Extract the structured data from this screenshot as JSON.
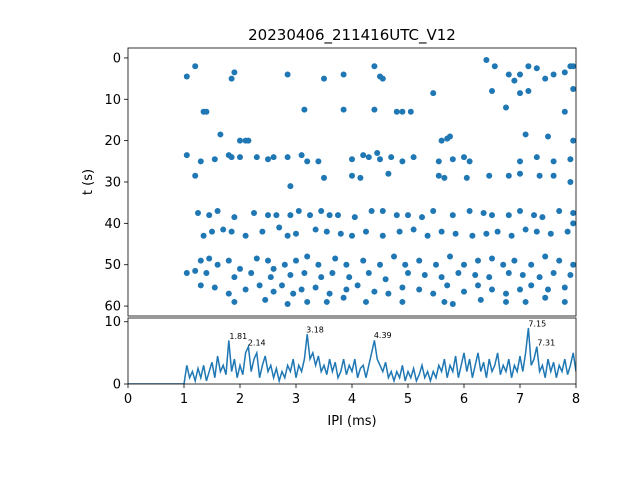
{
  "chart_data": [
    {
      "type": "scatter",
      "title": "20230406_211416UTC_V12",
      "ylabel": "t (s)",
      "color": "#1f77b4",
      "xlim": [
        0,
        8
      ],
      "ylim": [
        -2.4,
        62.4
      ],
      "y_inverted": true,
      "yticks": [
        0,
        10,
        20,
        30,
        40,
        50,
        60
      ],
      "x": [
        1.05,
        1.2,
        1.85,
        1.9,
        2.85,
        3.5,
        3.85,
        4.4,
        4.5,
        4.55,
        6.4,
        6.55,
        6.8,
        6.9,
        7.0,
        7.15,
        7.3,
        7.45,
        7.6,
        7.8,
        7.9,
        7.95,
        7.15,
        6.5,
        7.0,
        7.95,
        5.45,
        1.35,
        1.4,
        3.15,
        3.85,
        4.4,
        4.8,
        4.9,
        5.05,
        6.75,
        7.8,
        1.65,
        2.0,
        2.1,
        2.15,
        5.6,
        5.7,
        5.75,
        7.1,
        7.5,
        7.95,
        1.05,
        1.3,
        1.55,
        1.8,
        1.85,
        2.0,
        2.3,
        2.5,
        2.6,
        2.85,
        3.1,
        3.2,
        3.4,
        4.0,
        4.2,
        4.3,
        4.45,
        4.5,
        4.7,
        4.9,
        5.1,
        5.55,
        5.8,
        6.0,
        6.1,
        7.0,
        7.3,
        7.6,
        7.9,
        1.2,
        2.9,
        3.5,
        4.0,
        4.15,
        4.65,
        5.55,
        5.65,
        6.05,
        6.45,
        6.8,
        7.0,
        7.35,
        7.6,
        7.9,
        1.25,
        1.45,
        1.6,
        1.9,
        2.25,
        2.5,
        2.65,
        2.9,
        3.05,
        3.25,
        3.45,
        3.6,
        3.75,
        4.05,
        4.35,
        4.55,
        4.8,
        5.0,
        5.25,
        5.45,
        5.8,
        6.1,
        6.35,
        6.5,
        6.8,
        7.0,
        7.25,
        7.4,
        7.7,
        7.95,
        1.35,
        1.5,
        1.7,
        1.85,
        2.1,
        2.4,
        2.7,
        2.85,
        3.0,
        3.35,
        3.55,
        3.8,
        4.0,
        4.25,
        4.55,
        4.85,
        5.1,
        5.35,
        5.6,
        5.85,
        6.15,
        6.4,
        6.6,
        6.85,
        7.1,
        7.3,
        7.55,
        7.85,
        7.95,
        1.3,
        1.45,
        1.6,
        1.8,
        2.0,
        2.3,
        2.5,
        2.6,
        2.8,
        3.0,
        3.2,
        3.4,
        3.7,
        3.9,
        4.2,
        4.5,
        4.75,
        4.95,
        5.2,
        5.5,
        5.75,
        6.0,
        6.25,
        6.5,
        6.7,
        6.9,
        7.2,
        7.45,
        7.7,
        7.95,
        1.05,
        1.2,
        1.4,
        1.9,
        2.2,
        2.55,
        2.9,
        3.15,
        3.45,
        3.65,
        3.95,
        4.3,
        4.6,
        5.0,
        5.3,
        5.6,
        5.9,
        6.2,
        6.45,
        6.8,
        7.05,
        7.35,
        7.6,
        7.9,
        1.3,
        1.55,
        1.8,
        2.1,
        2.35,
        2.6,
        2.75,
        2.95,
        3.1,
        3.35,
        3.6,
        3.9,
        4.1,
        4.4,
        4.65,
        4.9,
        5.2,
        5.45,
        5.7,
        6.0,
        6.25,
        6.5,
        6.75,
        7.0,
        7.2,
        7.5,
        7.8,
        1.9,
        2.45,
        2.85,
        3.2,
        3.55,
        3.85,
        4.25,
        4.9,
        5.65,
        5.8,
        6.3,
        6.75,
        7.1,
        7.45,
        7.8
      ],
      "values": [
        4.5,
        2,
        5,
        3.5,
        4,
        5,
        4,
        2,
        4.5,
        5,
        0.5,
        2,
        4,
        5.5,
        4,
        2,
        2.5,
        5,
        4,
        3.5,
        2,
        2,
        8,
        8,
        8.5,
        7.5,
        8.5,
        13,
        13,
        12.5,
        12.5,
        12.5,
        13,
        13,
        13,
        12,
        13,
        18.5,
        20,
        20,
        20,
        20,
        19.5,
        19,
        18.5,
        19,
        20,
        23.5,
        25,
        24.5,
        23.5,
        24,
        24,
        24,
        24.5,
        24,
        24,
        23.5,
        25,
        25,
        24.5,
        23.5,
        24,
        23,
        24.5,
        24,
        25,
        24,
        25,
        24.5,
        24,
        25,
        25,
        24,
        25,
        24.5,
        28.5,
        31,
        29,
        28.5,
        29,
        28,
        28.5,
        29,
        29,
        28.5,
        28.5,
        28,
        28.5,
        28.5,
        30,
        37.5,
        38,
        37,
        38.5,
        37.5,
        38,
        38,
        38,
        37,
        38,
        37,
        38,
        38,
        38.5,
        37,
        37,
        38,
        38,
        38.5,
        37,
        38,
        37,
        37.5,
        38,
        38,
        37,
        38,
        38.5,
        37,
        37.5,
        43,
        42,
        41.5,
        42,
        43,
        42,
        41,
        43,
        42.5,
        41.5,
        42,
        42.5,
        43,
        42,
        43,
        42,
        41.5,
        43,
        42,
        42.5,
        43,
        42.5,
        42,
        43,
        41.5,
        42,
        42.5,
        42,
        40,
        49,
        48.5,
        50,
        49,
        51,
        48.5,
        49,
        51,
        50,
        49,
        48,
        50,
        48.5,
        50,
        49,
        50,
        48,
        50,
        49,
        50,
        48,
        50,
        49,
        48.5,
        50,
        49,
        50,
        48,
        49,
        50,
        52,
        51.5,
        52,
        53,
        52,
        53,
        52.5,
        52,
        53,
        52,
        53,
        52,
        53.5,
        52,
        52.5,
        53,
        52,
        52.5,
        53,
        52,
        52.5,
        53,
        52,
        52.5,
        55,
        55.5,
        57,
        56,
        55,
        56.5,
        55,
        57,
        56,
        55.5,
        57,
        56,
        55,
        56.5,
        57,
        55.5,
        56,
        57,
        55,
        56.5,
        55,
        56,
        57,
        56,
        55,
        56,
        55.5,
        59,
        58.5,
        59.5,
        59,
        59,
        58,
        59,
        59,
        59,
        59.5,
        58.5,
        59,
        59,
        58,
        59
      ]
    },
    {
      "type": "line",
      "xlabel": "IPI (ms)",
      "color": "#1f77b4",
      "xlim": [
        0,
        8
      ],
      "xticks": [
        0,
        1,
        2,
        3,
        4,
        5,
        6,
        7,
        8
      ],
      "ylim": [
        0,
        10.6
      ],
      "yticks": [
        0,
        10
      ],
      "x": [
        0,
        1.0,
        1.05,
        1.1,
        1.15,
        1.2,
        1.25,
        1.3,
        1.35,
        1.4,
        1.45,
        1.5,
        1.55,
        1.6,
        1.65,
        1.7,
        1.75,
        1.8,
        1.85,
        1.9,
        1.95,
        2.0,
        2.05,
        2.1,
        2.15,
        2.2,
        2.25,
        2.3,
        2.35,
        2.4,
        2.45,
        2.5,
        2.55,
        2.6,
        2.65,
        2.7,
        2.75,
        2.8,
        2.85,
        2.9,
        2.95,
        3.0,
        3.05,
        3.1,
        3.15,
        3.2,
        3.25,
        3.3,
        3.35,
        3.4,
        3.45,
        3.5,
        3.55,
        3.6,
        3.65,
        3.7,
        3.75,
        3.8,
        3.85,
        3.9,
        3.95,
        4.0,
        4.05,
        4.1,
        4.15,
        4.2,
        4.25,
        4.3,
        4.35,
        4.4,
        4.45,
        4.5,
        4.55,
        4.6,
        4.65,
        4.7,
        4.75,
        4.8,
        4.85,
        4.9,
        4.95,
        5.0,
        5.05,
        5.1,
        5.15,
        5.2,
        5.25,
        5.3,
        5.35,
        5.4,
        5.45,
        5.5,
        5.55,
        5.6,
        5.65,
        5.7,
        5.75,
        5.8,
        5.85,
        5.9,
        5.95,
        6.0,
        6.05,
        6.1,
        6.15,
        6.2,
        6.25,
        6.3,
        6.35,
        6.4,
        6.45,
        6.5,
        6.55,
        6.6,
        6.65,
        6.7,
        6.75,
        6.8,
        6.85,
        6.9,
        6.95,
        7.0,
        7.05,
        7.1,
        7.15,
        7.2,
        7.25,
        7.3,
        7.35,
        7.4,
        7.45,
        7.5,
        7.55,
        7.6,
        7.65,
        7.7,
        7.75,
        7.8,
        7.85,
        7.9,
        7.95,
        8.0
      ],
      "values": [
        0,
        0,
        3,
        1,
        2,
        0.5,
        2.5,
        1,
        3,
        0.5,
        2,
        3.5,
        1,
        4.5,
        2,
        3,
        1.5,
        7,
        2,
        4,
        1,
        3,
        1.5,
        5,
        6,
        2,
        4,
        5,
        1,
        3,
        4.5,
        2,
        3,
        1,
        2.5,
        0.5,
        2,
        1,
        3,
        2,
        4,
        1,
        3,
        2,
        4,
        8,
        4,
        5,
        3,
        4.5,
        2,
        3,
        1.5,
        4,
        2,
        3.5,
        1,
        2,
        4,
        1.5,
        3,
        2,
        4,
        1,
        2.5,
        3,
        1,
        3,
        5,
        7,
        4,
        3,
        2,
        3.5,
        1,
        2,
        0.5,
        2,
        1,
        3,
        0.5,
        2,
        1,
        2.5,
        0.5,
        1.5,
        3,
        1,
        2,
        0.5,
        2,
        1,
        3,
        2,
        4,
        1,
        3,
        2,
        4.5,
        1,
        3,
        5,
        2,
        4,
        1,
        3,
        5,
        2,
        3.5,
        1,
        4,
        2,
        3,
        5,
        1.5,
        3,
        2,
        4,
        1,
        3,
        2,
        4.5,
        2,
        5,
        9,
        3,
        4,
        6,
        2,
        3,
        1,
        4,
        2,
        3.5,
        1,
        3,
        2,
        4,
        1.5,
        3,
        5,
        2
      ],
      "annotations": [
        {
          "x": 1.81,
          "y": 7.2,
          "text": "1.81"
        },
        {
          "x": 2.14,
          "y": 6.2,
          "text": "2.14"
        },
        {
          "x": 3.18,
          "y": 8.3,
          "text": "3.18"
        },
        {
          "x": 4.39,
          "y": 7.4,
          "text": "4.39"
        },
        {
          "x": 7.15,
          "y": 9.2,
          "text": "7.15"
        },
        {
          "x": 7.31,
          "y": 6.2,
          "text": "7.31"
        }
      ]
    }
  ]
}
